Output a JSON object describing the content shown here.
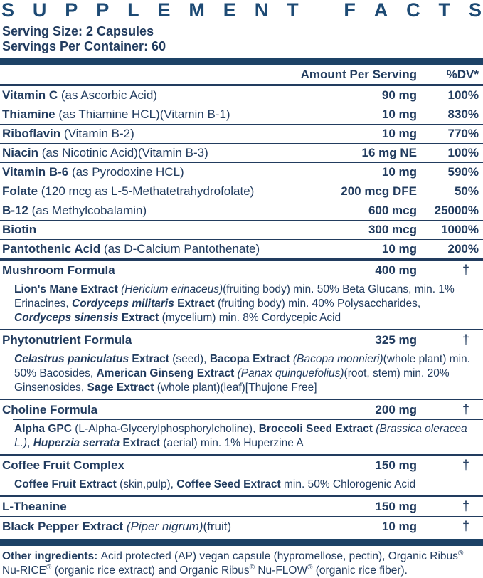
{
  "title": "SUPPLEMENT FACTS",
  "serving": {
    "size": "Serving Size: 2 Capsules",
    "per_container": "Servings Per Container: 60"
  },
  "columns": {
    "amount": "Amount Per Serving",
    "dv": "%DV*"
  },
  "colors": {
    "navy_text": "#223C5F",
    "bar_blue": "#1D4266",
    "title_blue": "#1D4A74"
  },
  "table": {
    "rows": [
      {
        "key": "vitamin-c",
        "divider": "none",
        "name": [
          {
            "t": "Vitamin C ",
            "b": true
          },
          {
            "t": "(as Ascorbic Acid)"
          }
        ],
        "amount": "90 mg",
        "dv": "100%"
      },
      {
        "key": "thiamine",
        "divider": "thin",
        "name": [
          {
            "t": "Thiamine ",
            "b": true
          },
          {
            "t": "(as Thiamine HCL)(Vitamin B-1)"
          }
        ],
        "amount": "10 mg",
        "dv": "830%"
      },
      {
        "key": "riboflavin",
        "divider": "thin",
        "name": [
          {
            "t": "Riboflavin ",
            "b": true
          },
          {
            "t": "(Vitamin B-2)"
          }
        ],
        "amount": "10 mg",
        "dv": "770%"
      },
      {
        "key": "niacin",
        "divider": "thin",
        "name": [
          {
            "t": "Niacin ",
            "b": true
          },
          {
            "t": "(as Nicotinic Acid)(Vitamin B-3)"
          }
        ],
        "amount": "16 mg NE",
        "dv": "100%"
      },
      {
        "key": "vitamin-b6",
        "divider": "thin",
        "name": [
          {
            "t": "Vitamin B-6 ",
            "b": true
          },
          {
            "t": "(as Pyrodoxine HCL)"
          }
        ],
        "amount": "10 mg",
        "dv": "590%"
      },
      {
        "key": "folate",
        "divider": "thin",
        "name": [
          {
            "t": "Folate ",
            "b": true
          },
          {
            "t": "(120 mcg as L-5-Methatetrahydrofolate)"
          }
        ],
        "amount": "200 mcg DFE",
        "dv": "50%"
      },
      {
        "key": "b12",
        "divider": "thin",
        "name": [
          {
            "t": "B-12 ",
            "b": true
          },
          {
            "t": "(as Methylcobalamin)"
          }
        ],
        "amount": "600 mcg",
        "dv": "25000%"
      },
      {
        "key": "biotin",
        "divider": "thin",
        "name": [
          {
            "t": "Biotin",
            "b": true
          }
        ],
        "amount": "300 mcg",
        "dv": "1000%"
      },
      {
        "key": "pantothenic-acid",
        "divider": "thin",
        "name": [
          {
            "t": "Pantothenic Acid ",
            "b": true
          },
          {
            "t": "(as D-Calcium Pantothenate)"
          }
        ],
        "amount": "10 mg",
        "dv": "200%"
      },
      {
        "key": "mushroom-formula",
        "divider": "thick",
        "name": [
          {
            "t": "Mushroom Formula",
            "b": true
          }
        ],
        "amount": "400 mg",
        "dv": "†",
        "sub": [
          {
            "t": "Lion's Mane Extract ",
            "b": true
          },
          {
            "t": "(Hericium erinaceus)",
            "i": true
          },
          {
            "t": "(fruiting body) min. 50% Beta Glucans, min. 1% Erinacines, "
          },
          {
            "t": "Cordyceps militaris",
            "b": true,
            "i": true
          },
          {
            "t": " Extract ",
            "b": true
          },
          {
            "t": "(fruiting body) min. 40% Polysaccharides, "
          },
          {
            "t": "Cordyceps sinensis",
            "b": true,
            "i": true
          },
          {
            "t": " Extract ",
            "b": true
          },
          {
            "t": "(mycelium) min. 8% Cordycepic Acid"
          }
        ]
      },
      {
        "key": "phytonutrient-formula",
        "divider": "medium",
        "name": [
          {
            "t": "Phytonutrient Formula",
            "b": true
          }
        ],
        "amount": "325 mg",
        "dv": "†",
        "sub": [
          {
            "t": "Celastrus paniculatus",
            "b": true,
            "i": true
          },
          {
            "t": " Extract ",
            "b": true
          },
          {
            "t": "(seed), "
          },
          {
            "t": "Bacopa Extract ",
            "b": true
          },
          {
            "t": "(Bacopa monnieri)",
            "i": true
          },
          {
            "t": "(whole plant) min. 50% Bacosides, "
          },
          {
            "t": "American Ginseng Extract ",
            "b": true
          },
          {
            "t": "(Panax quinquefolius)",
            "i": true
          },
          {
            "t": "(root, stem) min. 20% Ginsenosides, "
          },
          {
            "t": "Sage Extract ",
            "b": true
          },
          {
            "t": "(whole plant)(leaf)[Thujone Free]"
          }
        ]
      },
      {
        "key": "choline-formula",
        "divider": "medium",
        "name": [
          {
            "t": "Choline Formula",
            "b": true
          }
        ],
        "amount": "200 mg",
        "dv": "†",
        "sub": [
          {
            "t": "Alpha GPC ",
            "b": true
          },
          {
            "t": "(L-Alpha-Glycerylphosphorylcholine), "
          },
          {
            "t": "Broccoli Seed Extract ",
            "b": true
          },
          {
            "t": "(Brassica oleracea L.)",
            "i": true
          },
          {
            "t": ", "
          },
          {
            "t": "Huperzia serrata",
            "b": true,
            "i": true
          },
          {
            "t": " Extract ",
            "b": true
          },
          {
            "t": "(aerial) min. 1% Huperzine A"
          }
        ]
      },
      {
        "key": "coffee-fruit-complex",
        "divider": "medium",
        "name": [
          {
            "t": "Coffee Fruit Complex",
            "b": true
          }
        ],
        "amount": "150 mg",
        "dv": "†",
        "sub": [
          {
            "t": "Coffee Fruit Extract ",
            "b": true
          },
          {
            "t": "(skin,pulp), "
          },
          {
            "t": "Coffee Seed Extract ",
            "b": true
          },
          {
            "t": "min. 50% Chlorogenic Acid"
          }
        ]
      },
      {
        "key": "l-theanine",
        "divider": "medium",
        "name": [
          {
            "t": "L-Theanine",
            "b": true
          }
        ],
        "amount": "150 mg",
        "dv": "†"
      },
      {
        "key": "black-pepper-extract",
        "divider": "thin",
        "name": [
          {
            "t": "Black Pepper Extract ",
            "b": true
          },
          {
            "t": "(Piper nigrum)",
            "i": true
          },
          {
            "t": "(fruit)"
          }
        ],
        "amount": "10 mg",
        "dv": "†"
      }
    ]
  },
  "footnote": [
    {
      "t": "Other ingredients: ",
      "b": true
    },
    {
      "t": "Acid protected (AP) vegan capsule (hypromellose, pectin), Organic Ribus"
    },
    {
      "t": "®",
      "sup": true
    },
    {
      "t": " Nu-RICE"
    },
    {
      "t": "®",
      "sup": true
    },
    {
      "t": " (organic rice extract) and Organic Ribus"
    },
    {
      "t": "®",
      "sup": true
    },
    {
      "t": " Nu-FLOW"
    },
    {
      "t": "®",
      "sup": true
    },
    {
      "t": " (organic rice fiber)."
    }
  ]
}
